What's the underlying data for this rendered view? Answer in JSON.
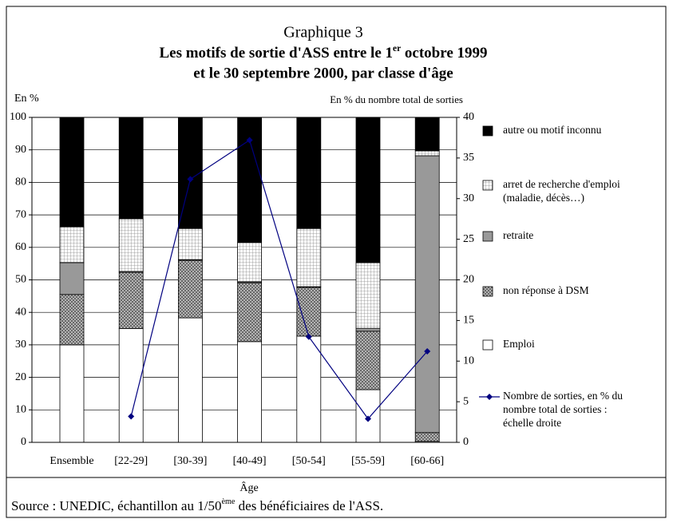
{
  "chart_data": {
    "type": "bar",
    "stacked": true,
    "title": "Graphique 3",
    "subtitle": [
      "Les motifs de sortie d'ASS entre le 1",
      "er",
      " octobre 1999",
      "et le 30 septembre 2000, par classe d'âge"
    ],
    "y_label": "En %",
    "y2_label": "En % du nombre total de sorties",
    "x_label": "Âge",
    "source": [
      "Source : UNEDIC, échantillon au 1/50",
      "ème",
      " des bénéficiaires de l'ASS."
    ],
    "categories": [
      "Ensemble",
      "[22-29]",
      "[30-39]",
      "[40-49]",
      "[50-54]",
      "[55-59]",
      "[60-66]"
    ],
    "series": [
      {
        "name": "Emploi",
        "color": "#ffffff",
        "values": [
          30,
          35,
          38.3,
          31,
          32.7,
          16.2,
          0.3
        ]
      },
      {
        "name": "non réponse à DSM",
        "color": "#a0a0a0",
        "pattern": "cross",
        "values": [
          15.5,
          17.3,
          17.7,
          18.1,
          15,
          18,
          2.7
        ]
      },
      {
        "name": "retraite",
        "color": "#999999",
        "values": [
          9.8,
          0.3,
          0.2,
          0.3,
          0.2,
          0.9,
          85.2
        ]
      },
      {
        "name": "arret de recherche d'emploi\n(maladie, décès…)",
        "color": "#e0e0e0",
        "pattern": "dots",
        "values": [
          11,
          16.2,
          9.6,
          12.1,
          17.9,
          20.2,
          1.5
        ]
      },
      {
        "name": "autre ou motif inconnu",
        "color": "#000000",
        "values": [
          33.7,
          31.2,
          34.2,
          38.5,
          34.2,
          44.7,
          10.3
        ]
      },
      {
        "name": "Nombre de sorties, en % du\nnombre total de sorties :\néchelle droite",
        "type": "line",
        "axis": "y2",
        "color": "#000080",
        "values": [
          null,
          3.2,
          32.4,
          37.2,
          13,
          2.9,
          11.2
        ]
      }
    ],
    "ylim": [
      0,
      100
    ],
    "yticks": [
      0,
      10,
      20,
      30,
      40,
      50,
      60,
      70,
      80,
      90,
      100
    ],
    "y2lim": [
      0,
      40
    ],
    "y2ticks": [
      0,
      5,
      10,
      15,
      20,
      25,
      30,
      35,
      40
    ],
    "grid": true,
    "legend": "right"
  }
}
